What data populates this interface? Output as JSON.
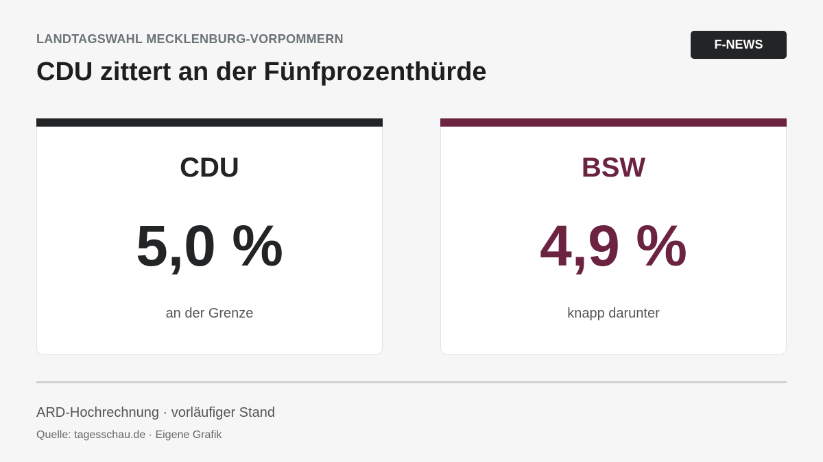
{
  "header": {
    "kicker": "LANDTAGSWAHL MECKLENBURG-VORPOMMERN",
    "title": "CDU zittert an der Fünfprozenthürde",
    "badge": "F-NEWS"
  },
  "cards": [
    {
      "party": "CDU",
      "value": "5,0 %",
      "note": "an der Grenze",
      "color": "#222425"
    },
    {
      "party": "BSW",
      "value": "4,9 %",
      "note": "knapp darunter",
      "color": "#6b2340"
    }
  ],
  "footer": {
    "line1": "ARD-Hochrechnung · vorläufiger Stand",
    "line2": "Quelle: tagesschau.de · Eigene Grafik"
  }
}
